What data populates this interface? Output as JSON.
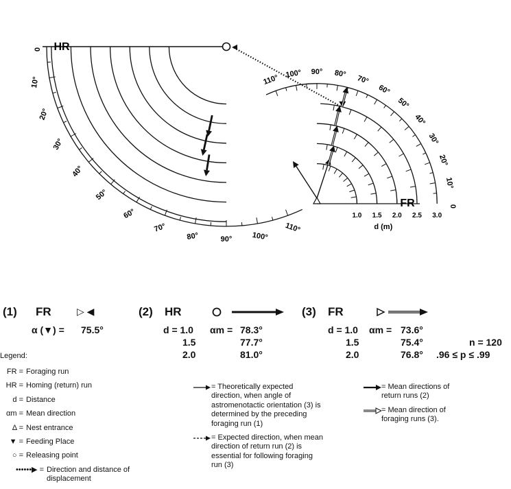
{
  "diagram": {
    "left_scale": {
      "label": "HR",
      "zero": "0",
      "ticks": [
        "10°",
        "20°",
        "30°",
        "40°",
        "50°",
        "60°",
        "70°",
        "80°",
        "90°",
        "100°",
        "110°"
      ]
    },
    "right_scale": {
      "label": "FR",
      "zero": "0",
      "ticks": [
        "10°",
        "20°",
        "30°",
        "40°",
        "50°",
        "60°",
        "70°",
        "80°",
        "90°",
        "100°",
        "110°"
      ]
    },
    "distance_axis": {
      "ticks": [
        "1.0",
        "1.5",
        "2.0",
        "2.5",
        "3.0"
      ],
      "label": "d (m)"
    }
  },
  "panels": [
    {
      "number": "(1)",
      "run": "FR",
      "formula_sym": "α (▼) =",
      "value": "75.5°"
    },
    {
      "number": "(2)",
      "run": "HR",
      "formula_sym": "αm =",
      "rows": [
        {
          "d": "d = 1.0",
          "value": "78.3°"
        },
        {
          "d": "1.5",
          "value": "77.7°"
        },
        {
          "d": "2.0",
          "value": "81.0°"
        }
      ]
    },
    {
      "number": "(3)",
      "run": "FR",
      "formula_sym": "αm =",
      "rows": [
        {
          "d": "d = 1.0",
          "value": "73.6°"
        },
        {
          "d": "1.5",
          "value": "75.4°"
        },
        {
          "d": "2.0",
          "value": "76.8°"
        }
      ],
      "n": "n = 120",
      "p": ".96 ≤ p ≤ .99"
    }
  ],
  "legend": {
    "title": "Legend:",
    "col1": [
      {
        "sym": "FR =",
        "text": "Foraging run"
      },
      {
        "sym": "HR =",
        "text": "Homing (return) run"
      },
      {
        "sym": "d =",
        "text": "Distance"
      },
      {
        "sym": "αm =",
        "text": "Mean direction"
      },
      {
        "sym": "Δ =",
        "text": "Nest entrance"
      },
      {
        "sym": "▼ =",
        "text": "Feeding Place"
      },
      {
        "sym": "○ =",
        "text": "Releasing point"
      },
      {
        "sym": "••••••▶ =",
        "text": "Direction and distance of displacement"
      }
    ],
    "col2": [
      {
        "text": "= Theoretically expected direction, when angle of astromenotactic orientation (3) is determined by the preceding foraging run (1)"
      },
      {
        "text": "= Expected direction, when mean direction of return run (2) is essential for following foraging run (3)"
      }
    ],
    "col3": [
      {
        "text": "= Mean directions of return runs (2)"
      },
      {
        "text": "= Mean direction of foraging runs (3)."
      }
    ]
  },
  "colors": {
    "ink": "#111111",
    "background": "#ffffff"
  }
}
